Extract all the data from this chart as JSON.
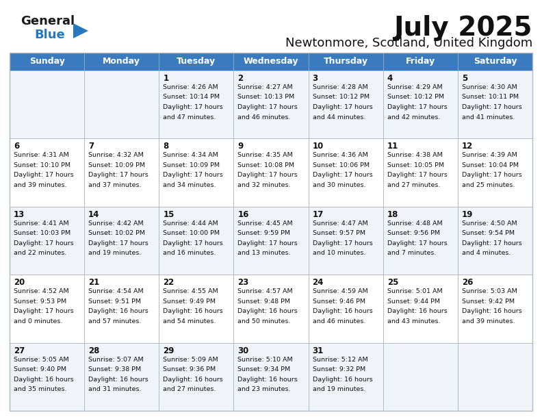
{
  "title": "July 2025",
  "subtitle": "Newtonmore, Scotland, United Kingdom",
  "header_bg": "#3a7bbf",
  "header_text_color": "#FFFFFF",
  "cell_bg_odd": "#f0f4f8",
  "cell_bg_even": "#FFFFFF",
  "border_color": "#b0b8c0",
  "day_headers": [
    "Sunday",
    "Monday",
    "Tuesday",
    "Wednesday",
    "Thursday",
    "Friday",
    "Saturday"
  ],
  "logo_general_color": "#1a1a1a",
  "logo_blue_color": "#2878c0",
  "logo_triangle_color": "#2878c0",
  "title_fontsize": 28,
  "subtitle_fontsize": 13,
  "header_fontsize": 9,
  "day_num_fontsize": 8.5,
  "info_fontsize": 6.8,
  "weeks": [
    [
      {
        "day": "",
        "info": ""
      },
      {
        "day": "",
        "info": ""
      },
      {
        "day": "1",
        "info": "Sunrise: 4:26 AM\nSunset: 10:14 PM\nDaylight: 17 hours\nand 47 minutes."
      },
      {
        "day": "2",
        "info": "Sunrise: 4:27 AM\nSunset: 10:13 PM\nDaylight: 17 hours\nand 46 minutes."
      },
      {
        "day": "3",
        "info": "Sunrise: 4:28 AM\nSunset: 10:12 PM\nDaylight: 17 hours\nand 44 minutes."
      },
      {
        "day": "4",
        "info": "Sunrise: 4:29 AM\nSunset: 10:12 PM\nDaylight: 17 hours\nand 42 minutes."
      },
      {
        "day": "5",
        "info": "Sunrise: 4:30 AM\nSunset: 10:11 PM\nDaylight: 17 hours\nand 41 minutes."
      }
    ],
    [
      {
        "day": "6",
        "info": "Sunrise: 4:31 AM\nSunset: 10:10 PM\nDaylight: 17 hours\nand 39 minutes."
      },
      {
        "day": "7",
        "info": "Sunrise: 4:32 AM\nSunset: 10:09 PM\nDaylight: 17 hours\nand 37 minutes."
      },
      {
        "day": "8",
        "info": "Sunrise: 4:34 AM\nSunset: 10:09 PM\nDaylight: 17 hours\nand 34 minutes."
      },
      {
        "day": "9",
        "info": "Sunrise: 4:35 AM\nSunset: 10:08 PM\nDaylight: 17 hours\nand 32 minutes."
      },
      {
        "day": "10",
        "info": "Sunrise: 4:36 AM\nSunset: 10:06 PM\nDaylight: 17 hours\nand 30 minutes."
      },
      {
        "day": "11",
        "info": "Sunrise: 4:38 AM\nSunset: 10:05 PM\nDaylight: 17 hours\nand 27 minutes."
      },
      {
        "day": "12",
        "info": "Sunrise: 4:39 AM\nSunset: 10:04 PM\nDaylight: 17 hours\nand 25 minutes."
      }
    ],
    [
      {
        "day": "13",
        "info": "Sunrise: 4:41 AM\nSunset: 10:03 PM\nDaylight: 17 hours\nand 22 minutes."
      },
      {
        "day": "14",
        "info": "Sunrise: 4:42 AM\nSunset: 10:02 PM\nDaylight: 17 hours\nand 19 minutes."
      },
      {
        "day": "15",
        "info": "Sunrise: 4:44 AM\nSunset: 10:00 PM\nDaylight: 17 hours\nand 16 minutes."
      },
      {
        "day": "16",
        "info": "Sunrise: 4:45 AM\nSunset: 9:59 PM\nDaylight: 17 hours\nand 13 minutes."
      },
      {
        "day": "17",
        "info": "Sunrise: 4:47 AM\nSunset: 9:57 PM\nDaylight: 17 hours\nand 10 minutes."
      },
      {
        "day": "18",
        "info": "Sunrise: 4:48 AM\nSunset: 9:56 PM\nDaylight: 17 hours\nand 7 minutes."
      },
      {
        "day": "19",
        "info": "Sunrise: 4:50 AM\nSunset: 9:54 PM\nDaylight: 17 hours\nand 4 minutes."
      }
    ],
    [
      {
        "day": "20",
        "info": "Sunrise: 4:52 AM\nSunset: 9:53 PM\nDaylight: 17 hours\nand 0 minutes."
      },
      {
        "day": "21",
        "info": "Sunrise: 4:54 AM\nSunset: 9:51 PM\nDaylight: 16 hours\nand 57 minutes."
      },
      {
        "day": "22",
        "info": "Sunrise: 4:55 AM\nSunset: 9:49 PM\nDaylight: 16 hours\nand 54 minutes."
      },
      {
        "day": "23",
        "info": "Sunrise: 4:57 AM\nSunset: 9:48 PM\nDaylight: 16 hours\nand 50 minutes."
      },
      {
        "day": "24",
        "info": "Sunrise: 4:59 AM\nSunset: 9:46 PM\nDaylight: 16 hours\nand 46 minutes."
      },
      {
        "day": "25",
        "info": "Sunrise: 5:01 AM\nSunset: 9:44 PM\nDaylight: 16 hours\nand 43 minutes."
      },
      {
        "day": "26",
        "info": "Sunrise: 5:03 AM\nSunset: 9:42 PM\nDaylight: 16 hours\nand 39 minutes."
      }
    ],
    [
      {
        "day": "27",
        "info": "Sunrise: 5:05 AM\nSunset: 9:40 PM\nDaylight: 16 hours\nand 35 minutes."
      },
      {
        "day": "28",
        "info": "Sunrise: 5:07 AM\nSunset: 9:38 PM\nDaylight: 16 hours\nand 31 minutes."
      },
      {
        "day": "29",
        "info": "Sunrise: 5:09 AM\nSunset: 9:36 PM\nDaylight: 16 hours\nand 27 minutes."
      },
      {
        "day": "30",
        "info": "Sunrise: 5:10 AM\nSunset: 9:34 PM\nDaylight: 16 hours\nand 23 minutes."
      },
      {
        "day": "31",
        "info": "Sunrise: 5:12 AM\nSunset: 9:32 PM\nDaylight: 16 hours\nand 19 minutes."
      },
      {
        "day": "",
        "info": ""
      },
      {
        "day": "",
        "info": ""
      }
    ]
  ]
}
